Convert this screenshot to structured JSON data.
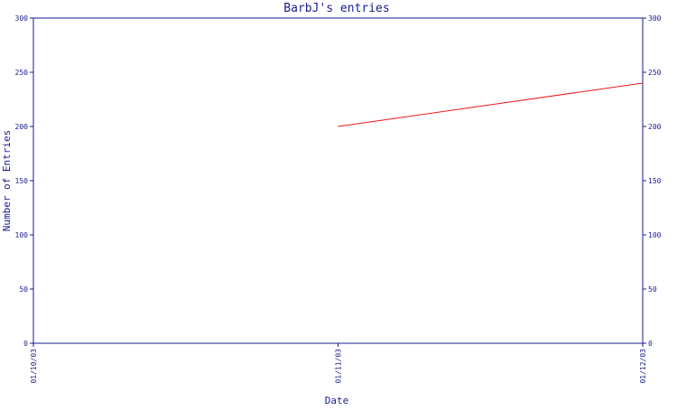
{
  "chart_data": {
    "type": "line",
    "title": "BarbJ's entries",
    "xlabel": "Date",
    "ylabel": "Number of Entries",
    "x_categories": [
      "01/10/03",
      "01/11/03",
      "01/12/03"
    ],
    "ylim": [
      0,
      300
    ],
    "y_ticks": [
      0,
      50,
      100,
      150,
      200,
      250,
      300
    ],
    "grid": false,
    "right_axis": true,
    "series": [
      {
        "color": "#e41a1c",
        "points": [
          {
            "x": "01/11/03",
            "y": 200
          },
          {
            "x": "01/12/03",
            "y": 240
          }
        ]
      }
    ]
  }
}
